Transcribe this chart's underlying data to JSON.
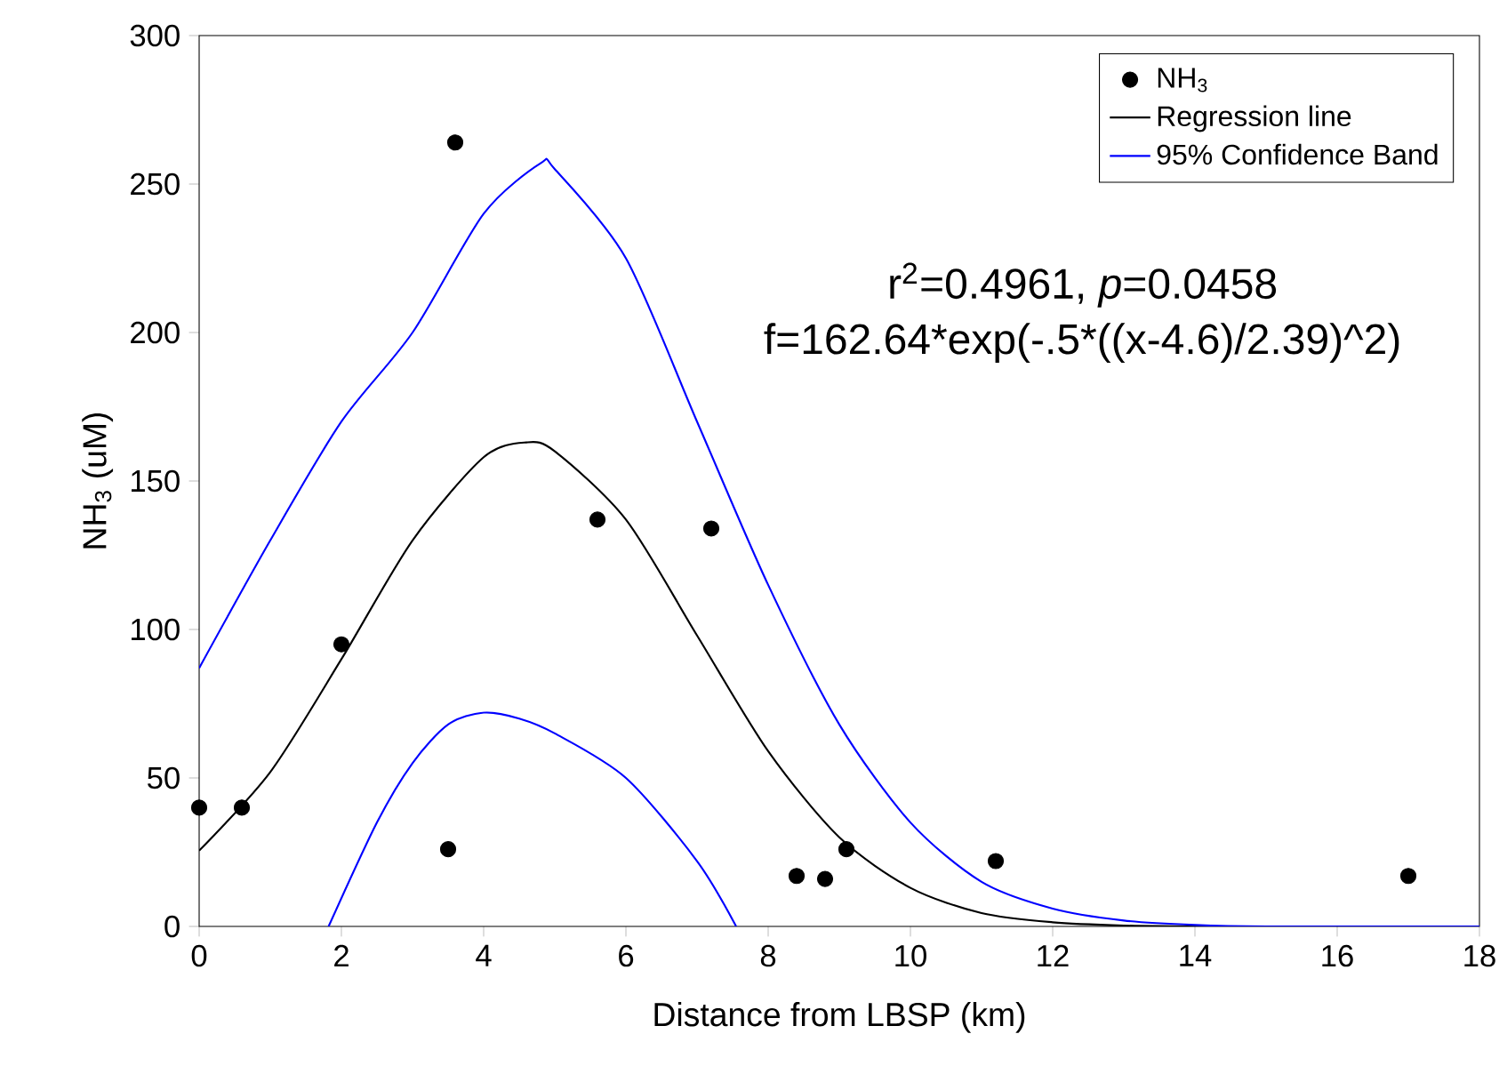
{
  "chart_data": {
    "type": "scatter",
    "xlabel": "Distance from LBSP (km)",
    "ylabel": "NH$_{3}$ (uM)",
    "xlim": [
      0,
      18
    ],
    "xticks": [
      0,
      2,
      4,
      6,
      8,
      10,
      12,
      14,
      16,
      18
    ],
    "ylim": [
      0,
      300
    ],
    "yticks": [
      0,
      50,
      100,
      150,
      200,
      250,
      300
    ],
    "legend": "top right",
    "grid": false,
    "annotations": [
      "r$^{2}$=0.4961, *p*=0.0458",
      "f=162.64*exp(-.5*((x-4.6)/2.39)^2)"
    ],
    "series": [
      {
        "name": "NH$_{3}$",
        "marker": "circle",
        "color": "#000000",
        "x": [
          0,
          0.6,
          2,
          3.5,
          3.6,
          5.6,
          7.2,
          8.4,
          8.8,
          9.1,
          11.2,
          17
        ],
        "values": [
          40,
          40,
          95,
          26,
          264,
          137,
          134,
          17,
          16,
          26,
          22,
          17
        ]
      },
      {
        "name": "Regression line",
        "type": "line",
        "marker": "none",
        "color": "#000000",
        "x": [
          0,
          1,
          2,
          3,
          4,
          4.6,
          5,
          6,
          7,
          8,
          9,
          10,
          11,
          12,
          13,
          14,
          15,
          16,
          17,
          18
        ],
        "values": [
          25.5,
          52,
          90,
          130,
          158,
          163,
          160,
          137,
          98,
          59,
          30,
          13,
          4.5,
          1.4,
          0.3,
          0,
          0,
          0,
          0,
          0
        ]
      },
      {
        "name": "95% Confidence Band",
        "type": "line",
        "marker": "none",
        "color": "#0000ff",
        "x": [
          0,
          1,
          2,
          3,
          4,
          4.8,
          5,
          6,
          7,
          8,
          9,
          10,
          11,
          12,
          13,
          14,
          15,
          18
        ],
        "values": [
          87,
          130,
          170,
          200,
          240,
          257,
          255,
          225,
          170,
          115,
          68,
          35,
          15,
          6,
          2,
          0.5,
          0,
          0
        ]
      },
      {
        "type": "line",
        "marker": "none",
        "color": "#0000ff",
        "x": [
          1.82,
          2.5,
          3,
          3.5,
          4,
          4.5,
          5,
          6,
          7,
          7.55
        ],
        "values": [
          0,
          35,
          55,
          68,
          72,
          70,
          65,
          50,
          22,
          0
        ]
      }
    ]
  }
}
